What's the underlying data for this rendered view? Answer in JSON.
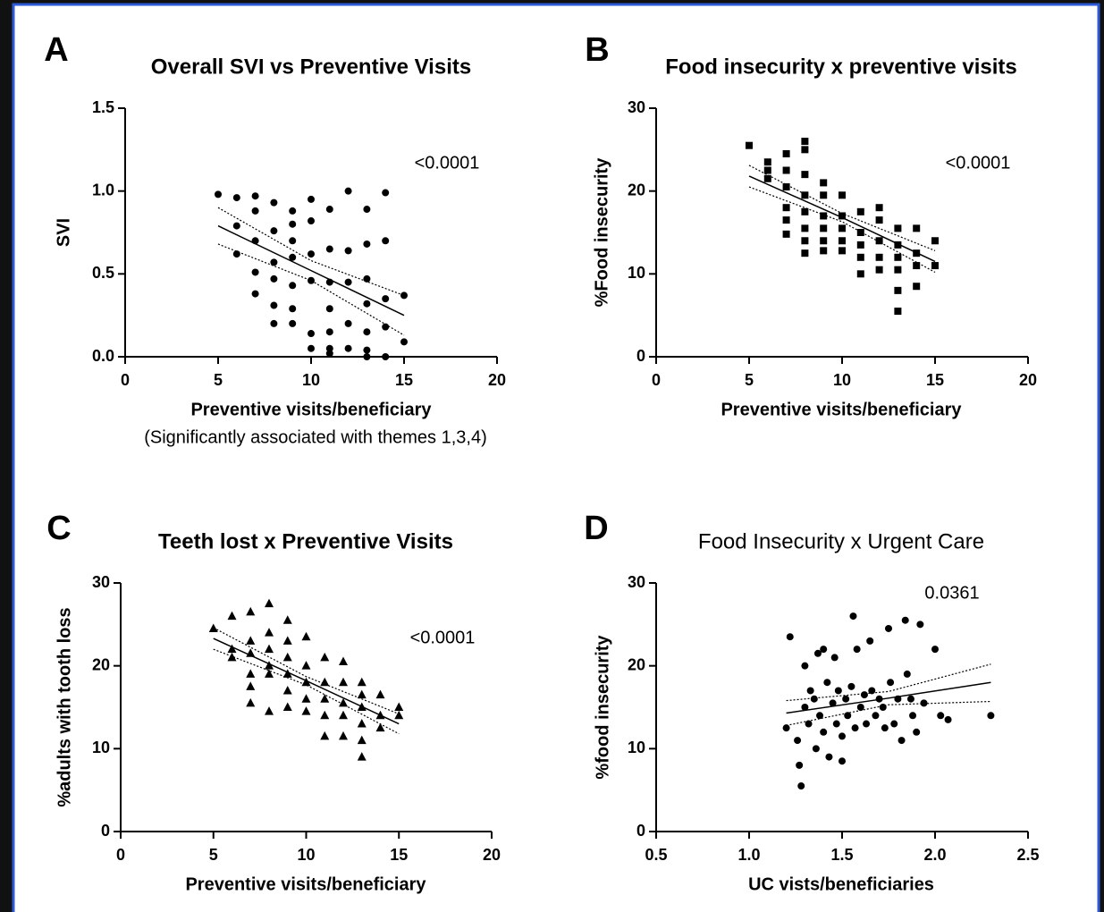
{
  "chart_data": [
    {
      "type": "scatter",
      "panel": "A",
      "title": "Overall SVI vs Preventive Visits",
      "annotation": "<0.0001",
      "xlabel": "Preventive visits/beneficiary",
      "note": "(Significantly associated with themes 1,3,4)",
      "ylabel": "SVI",
      "marker": "circle",
      "color": "#000000",
      "x": [
        5,
        6,
        6,
        6,
        7,
        7,
        7,
        7,
        7,
        8,
        8,
        8,
        8,
        8,
        8,
        9,
        9,
        9,
        9,
        9,
        9,
        9,
        10,
        10,
        10,
        10,
        10,
        10,
        11,
        11,
        11,
        11,
        11,
        11,
        11,
        12,
        12,
        12,
        12,
        12,
        13,
        13,
        13,
        13,
        13,
        13,
        13,
        14,
        14,
        14,
        14,
        14,
        15,
        15
      ],
      "y": [
        0.98,
        0.96,
        0.79,
        0.62,
        0.97,
        0.88,
        0.7,
        0.51,
        0.38,
        0.93,
        0.76,
        0.57,
        0.47,
        0.31,
        0.2,
        0.88,
        0.8,
        0.7,
        0.6,
        0.43,
        0.29,
        0.2,
        0.95,
        0.82,
        0.62,
        0.46,
        0.14,
        0.05,
        0.89,
        0.65,
        0.45,
        0.29,
        0.15,
        0.05,
        0.02,
        1.0,
        0.64,
        0.45,
        0.2,
        0.05,
        0.89,
        0.68,
        0.47,
        0.32,
        0.15,
        0.04,
        0.0,
        0.99,
        0.7,
        0.35,
        0.18,
        0.0,
        0.37,
        0.09
      ],
      "fit": {
        "x": [
          5,
          10,
          15
        ],
        "y": [
          0.79,
          0.52,
          0.25
        ],
        "lower": [
          0.68,
          0.46,
          0.13
        ],
        "upper": [
          0.9,
          0.58,
          0.37
        ]
      },
      "xlim": [
        0,
        20
      ],
      "xticks": [
        0,
        5,
        10,
        15,
        20
      ],
      "ylim": [
        0,
        1.5
      ],
      "yticks": [
        {
          "value": 0,
          "label": "0.0"
        },
        0.5,
        {
          "value": 1,
          "label": "1.0"
        },
        1.5
      ]
    },
    {
      "type": "scatter",
      "panel": "B",
      "title": "Food insecurity x preventive visits",
      "annotation": "<0.0001",
      "xlabel": "Preventive visits/beneficiary",
      "ylabel": "%Food insecurity",
      "marker": "square",
      "color": "#000000",
      "x": [
        5,
        6,
        6,
        6,
        7,
        7,
        7,
        7,
        7,
        7,
        8,
        8,
        8,
        8,
        8,
        8,
        8,
        8,
        9,
        9,
        9,
        9,
        9,
        9,
        10,
        10,
        10,
        10,
        10,
        11,
        11,
        11,
        11,
        11,
        12,
        12,
        12,
        12,
        12,
        13,
        13,
        13,
        13,
        13,
        13,
        14,
        14,
        14,
        14,
        15,
        15
      ],
      "y": [
        25.5,
        23.5,
        22.5,
        21.5,
        24.5,
        22.5,
        20.5,
        18,
        16.5,
        14.8,
        26,
        25,
        22,
        19.5,
        17.5,
        15.5,
        14,
        12.5,
        21,
        19.5,
        17,
        15.5,
        14,
        12.8,
        19.5,
        17,
        15.5,
        14,
        12.8,
        17.5,
        15,
        13.5,
        12,
        10,
        18,
        16.5,
        14,
        12,
        10.5,
        15.5,
        13.5,
        12,
        10.5,
        8,
        5.5,
        15.5,
        12.5,
        11,
        8.5,
        14,
        11
      ],
      "fit": {
        "x": [
          5,
          10,
          15
        ],
        "y": [
          21.8,
          16.8,
          11.5
        ],
        "lower": [
          20.5,
          16.3,
          10.2
        ],
        "upper": [
          23.1,
          17.3,
          12.8
        ]
      },
      "xlim": [
        0,
        20
      ],
      "xticks": [
        0,
        5,
        10,
        15,
        20
      ],
      "ylim": [
        0,
        30
      ],
      "yticks": [
        0,
        10,
        20,
        30
      ]
    },
    {
      "type": "scatter",
      "panel": "C",
      "title": "Teeth lost x Preventive Visits",
      "annotation": "<0.0001",
      "xlabel": "Preventive visits/beneficiary",
      "ylabel": "%adults with tooth loss",
      "marker": "triangle",
      "color": "#000000",
      "x": [
        5,
        6,
        6,
        6,
        7,
        7,
        7,
        7,
        7,
        7,
        8,
        8,
        8,
        8,
        8,
        8,
        9,
        9,
        9,
        9,
        9,
        9,
        10,
        10,
        10,
        10,
        10,
        11,
        11,
        11,
        11,
        11,
        12,
        12,
        12,
        12,
        12,
        13,
        13,
        13,
        13,
        13,
        13,
        14,
        14,
        14,
        15,
        15
      ],
      "y": [
        24.5,
        26,
        22,
        21,
        26.5,
        23,
        21.5,
        19,
        17.5,
        15.5,
        27.5,
        24,
        22,
        20,
        19,
        14.5,
        25.5,
        23,
        21,
        19,
        17,
        15,
        23.5,
        20,
        18,
        16,
        14.5,
        21,
        18,
        16,
        14,
        11.5,
        20.5,
        18,
        15.5,
        14,
        11.5,
        18,
        16.5,
        15,
        13,
        11,
        9,
        16.5,
        14,
        12.5,
        15,
        14
      ],
      "fit": {
        "x": [
          5,
          10,
          15
        ],
        "y": [
          23.3,
          18.2,
          13
        ],
        "lower": [
          22,
          17.7,
          11.8
        ],
        "upper": [
          24.6,
          18.7,
          14.2
        ]
      },
      "xlim": [
        0,
        20
      ],
      "xticks": [
        0,
        5,
        10,
        15,
        20
      ],
      "ylim": [
        0,
        30
      ],
      "yticks": [
        0,
        10,
        20,
        30
      ]
    },
    {
      "type": "scatter",
      "panel": "D",
      "title": "Food Insecurity x Urgent Care",
      "annotation": "0.0361",
      "xlabel": "UC vists/beneficiaries",
      "ylabel": "%food insecurity",
      "marker": "circle",
      "color": "#000000",
      "x": [
        1.2,
        1.22,
        1.26,
        1.27,
        1.28,
        1.3,
        1.3,
        1.32,
        1.33,
        1.35,
        1.36,
        1.37,
        1.38,
        1.4,
        1.4,
        1.42,
        1.43,
        1.45,
        1.46,
        1.47,
        1.48,
        1.5,
        1.5,
        1.52,
        1.53,
        1.55,
        1.56,
        1.57,
        1.58,
        1.6,
        1.62,
        1.63,
        1.65,
        1.66,
        1.68,
        1.7,
        1.72,
        1.73,
        1.75,
        1.76,
        1.78,
        1.8,
        1.82,
        1.84,
        1.85,
        1.87,
        1.88,
        1.9,
        1.92,
        1.94,
        2.0,
        2.03,
        2.07,
        2.3
      ],
      "y": [
        12.5,
        23.5,
        11,
        8,
        5.5,
        20,
        15,
        13,
        17,
        16,
        10,
        21.5,
        14,
        22,
        12,
        18,
        9,
        15.5,
        21,
        13,
        17,
        11.5,
        8.5,
        16,
        14,
        17.5,
        26,
        12.5,
        22,
        15,
        16.5,
        13,
        23,
        17,
        14,
        16,
        15,
        12.5,
        24.5,
        18,
        13,
        16,
        11,
        25.5,
        19,
        16,
        14,
        12,
        25,
        15.5,
        22,
        14,
        13.5,
        14
      ],
      "fit": {
        "x": [
          1.2,
          1.75,
          2.3
        ],
        "y": [
          14.3,
          16.1,
          18
        ],
        "lower": [
          12.8,
          15.3,
          15.7
        ],
        "upper": [
          15.8,
          16.9,
          20.2
        ]
      },
      "xlim": [
        0.5,
        2.5
      ],
      "xticks": [
        0.5,
        {
          "value": 1,
          "label": "1.0"
        },
        1.5,
        {
          "value": 2,
          "label": "2.0"
        },
        2.5
      ],
      "ylim": [
        0,
        30
      ],
      "yticks": [
        0,
        10,
        20,
        30
      ]
    }
  ]
}
